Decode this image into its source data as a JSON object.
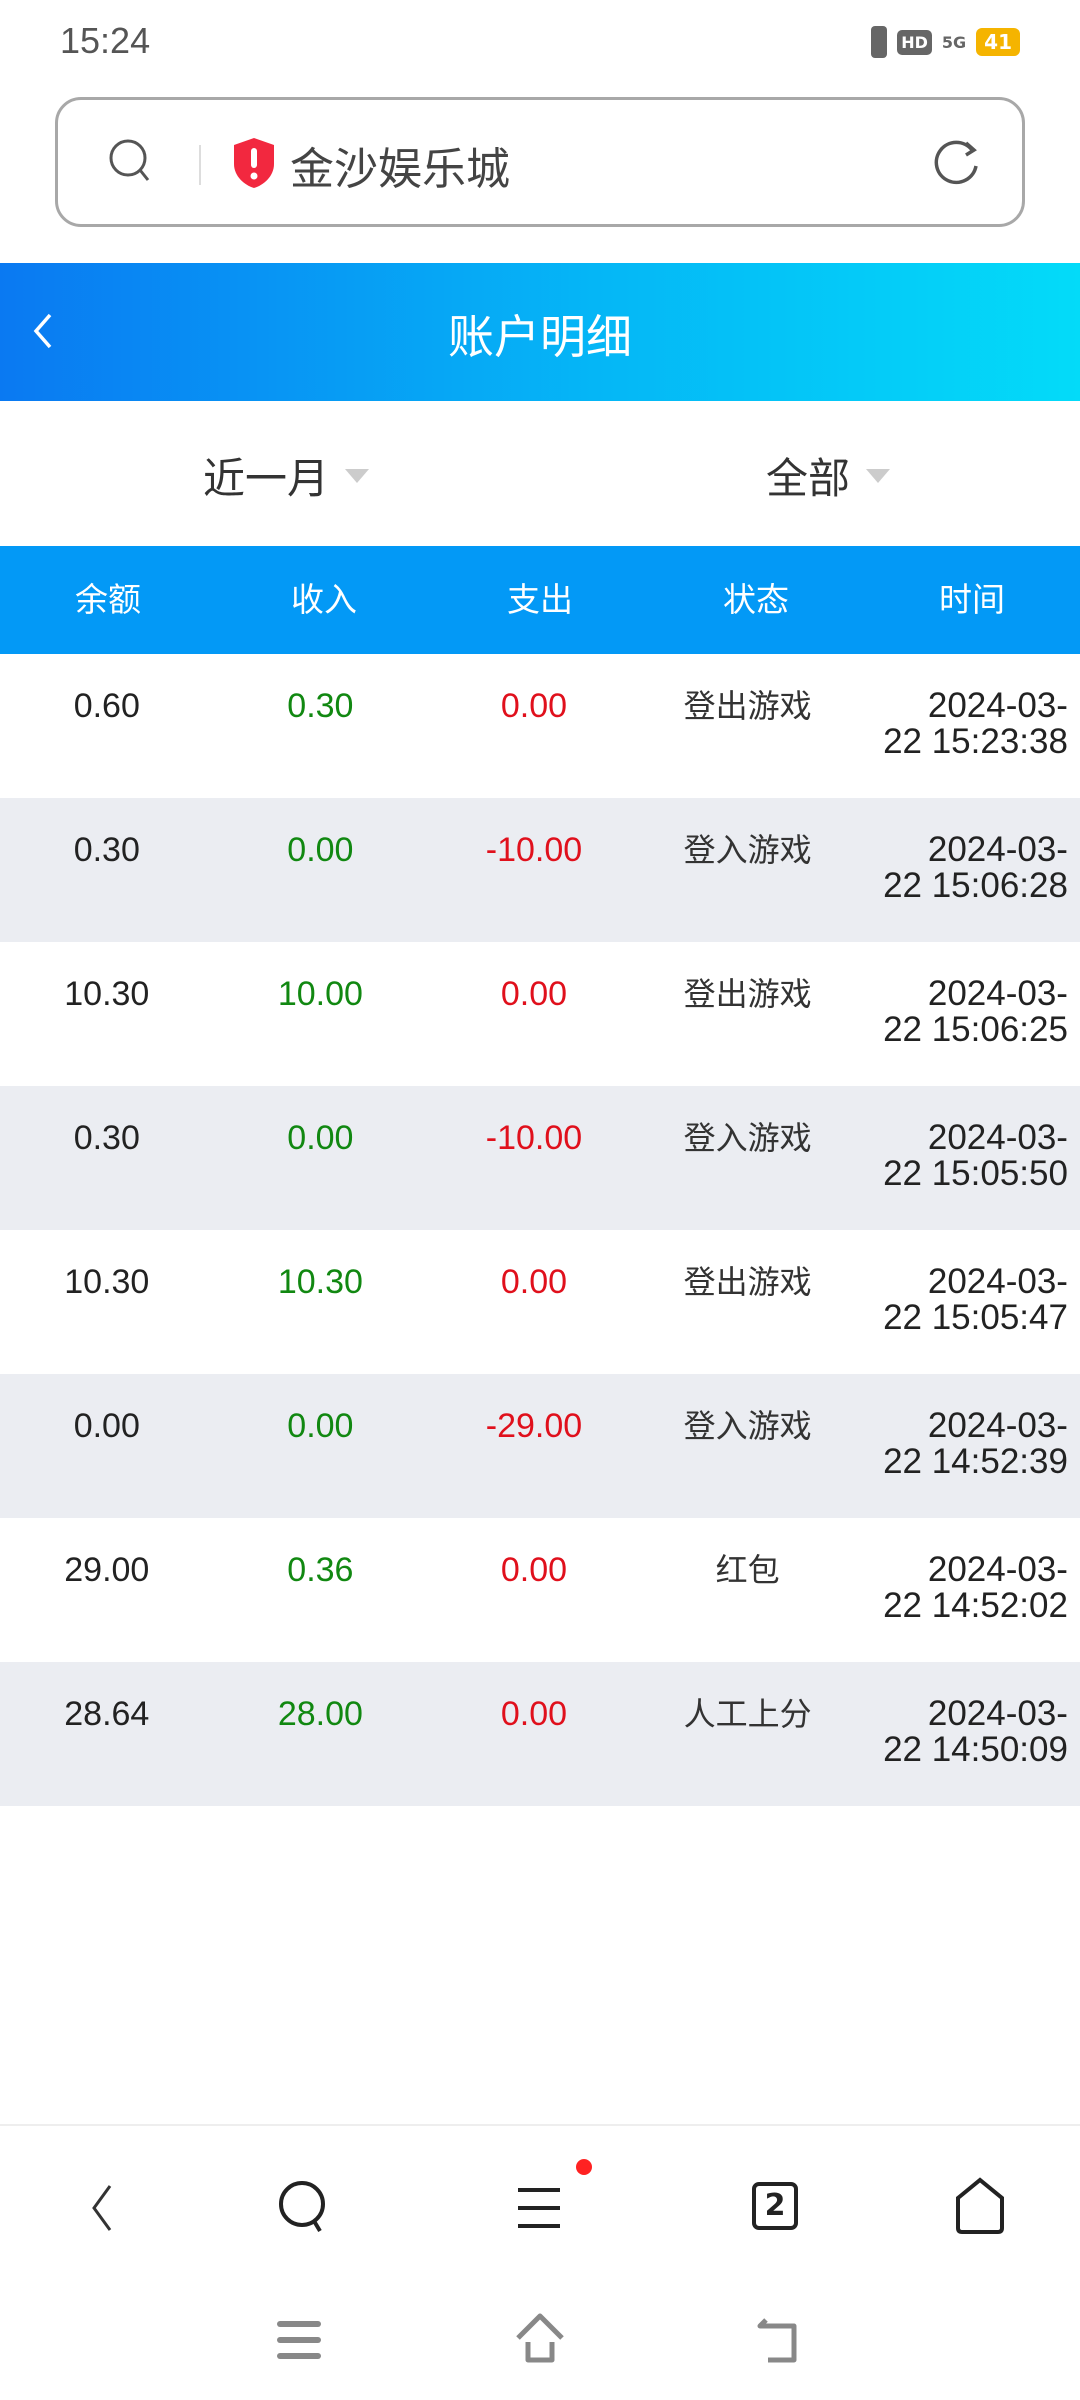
{
  "status_bar": {
    "time": "15:24",
    "battery": "41",
    "network": "5G",
    "hd": "HD"
  },
  "browser": {
    "url_text": "金沙娱乐城",
    "tab_count": "2"
  },
  "header": {
    "title": "账户明细"
  },
  "filters": {
    "period": "近一月",
    "type": "全部"
  },
  "table": {
    "columns": [
      "余额",
      "收入",
      "支出",
      "状态",
      "时间"
    ],
    "rows": [
      {
        "balance": "0.60",
        "income": "0.30",
        "expense": "0.00",
        "status": "登出游戏",
        "date": "2024-03-",
        "time": "22 15:23:38"
      },
      {
        "balance": "0.30",
        "income": "0.00",
        "expense": "-10.00",
        "status": "登入游戏",
        "date": "2024-03-",
        "time": "22 15:06:28"
      },
      {
        "balance": "10.30",
        "income": "10.00",
        "expense": "0.00",
        "status": "登出游戏",
        "date": "2024-03-",
        "time": "22 15:06:25"
      },
      {
        "balance": "0.30",
        "income": "0.00",
        "expense": "-10.00",
        "status": "登入游戏",
        "date": "2024-03-",
        "time": "22 15:05:50"
      },
      {
        "balance": "10.30",
        "income": "10.30",
        "expense": "0.00",
        "status": "登出游戏",
        "date": "2024-03-",
        "time": "22 15:05:47"
      },
      {
        "balance": "0.00",
        "income": "0.00",
        "expense": "-29.00",
        "status": "登入游戏",
        "date": "2024-03-",
        "time": "22 14:52:39"
      },
      {
        "balance": "29.00",
        "income": "0.36",
        "expense": "0.00",
        "status": "红包",
        "date": "2024-03-",
        "time": "22 14:52:02"
      },
      {
        "balance": "28.64",
        "income": "28.00",
        "expense": "0.00",
        "status": "人工上分",
        "date": "2024-03-",
        "time": "22 14:50:09"
      }
    ]
  },
  "colors": {
    "header_start": "#0a79f2",
    "header_end": "#03dbf9",
    "table_header": "#0399f6",
    "income": "#118811",
    "expense": "#e0101c"
  }
}
